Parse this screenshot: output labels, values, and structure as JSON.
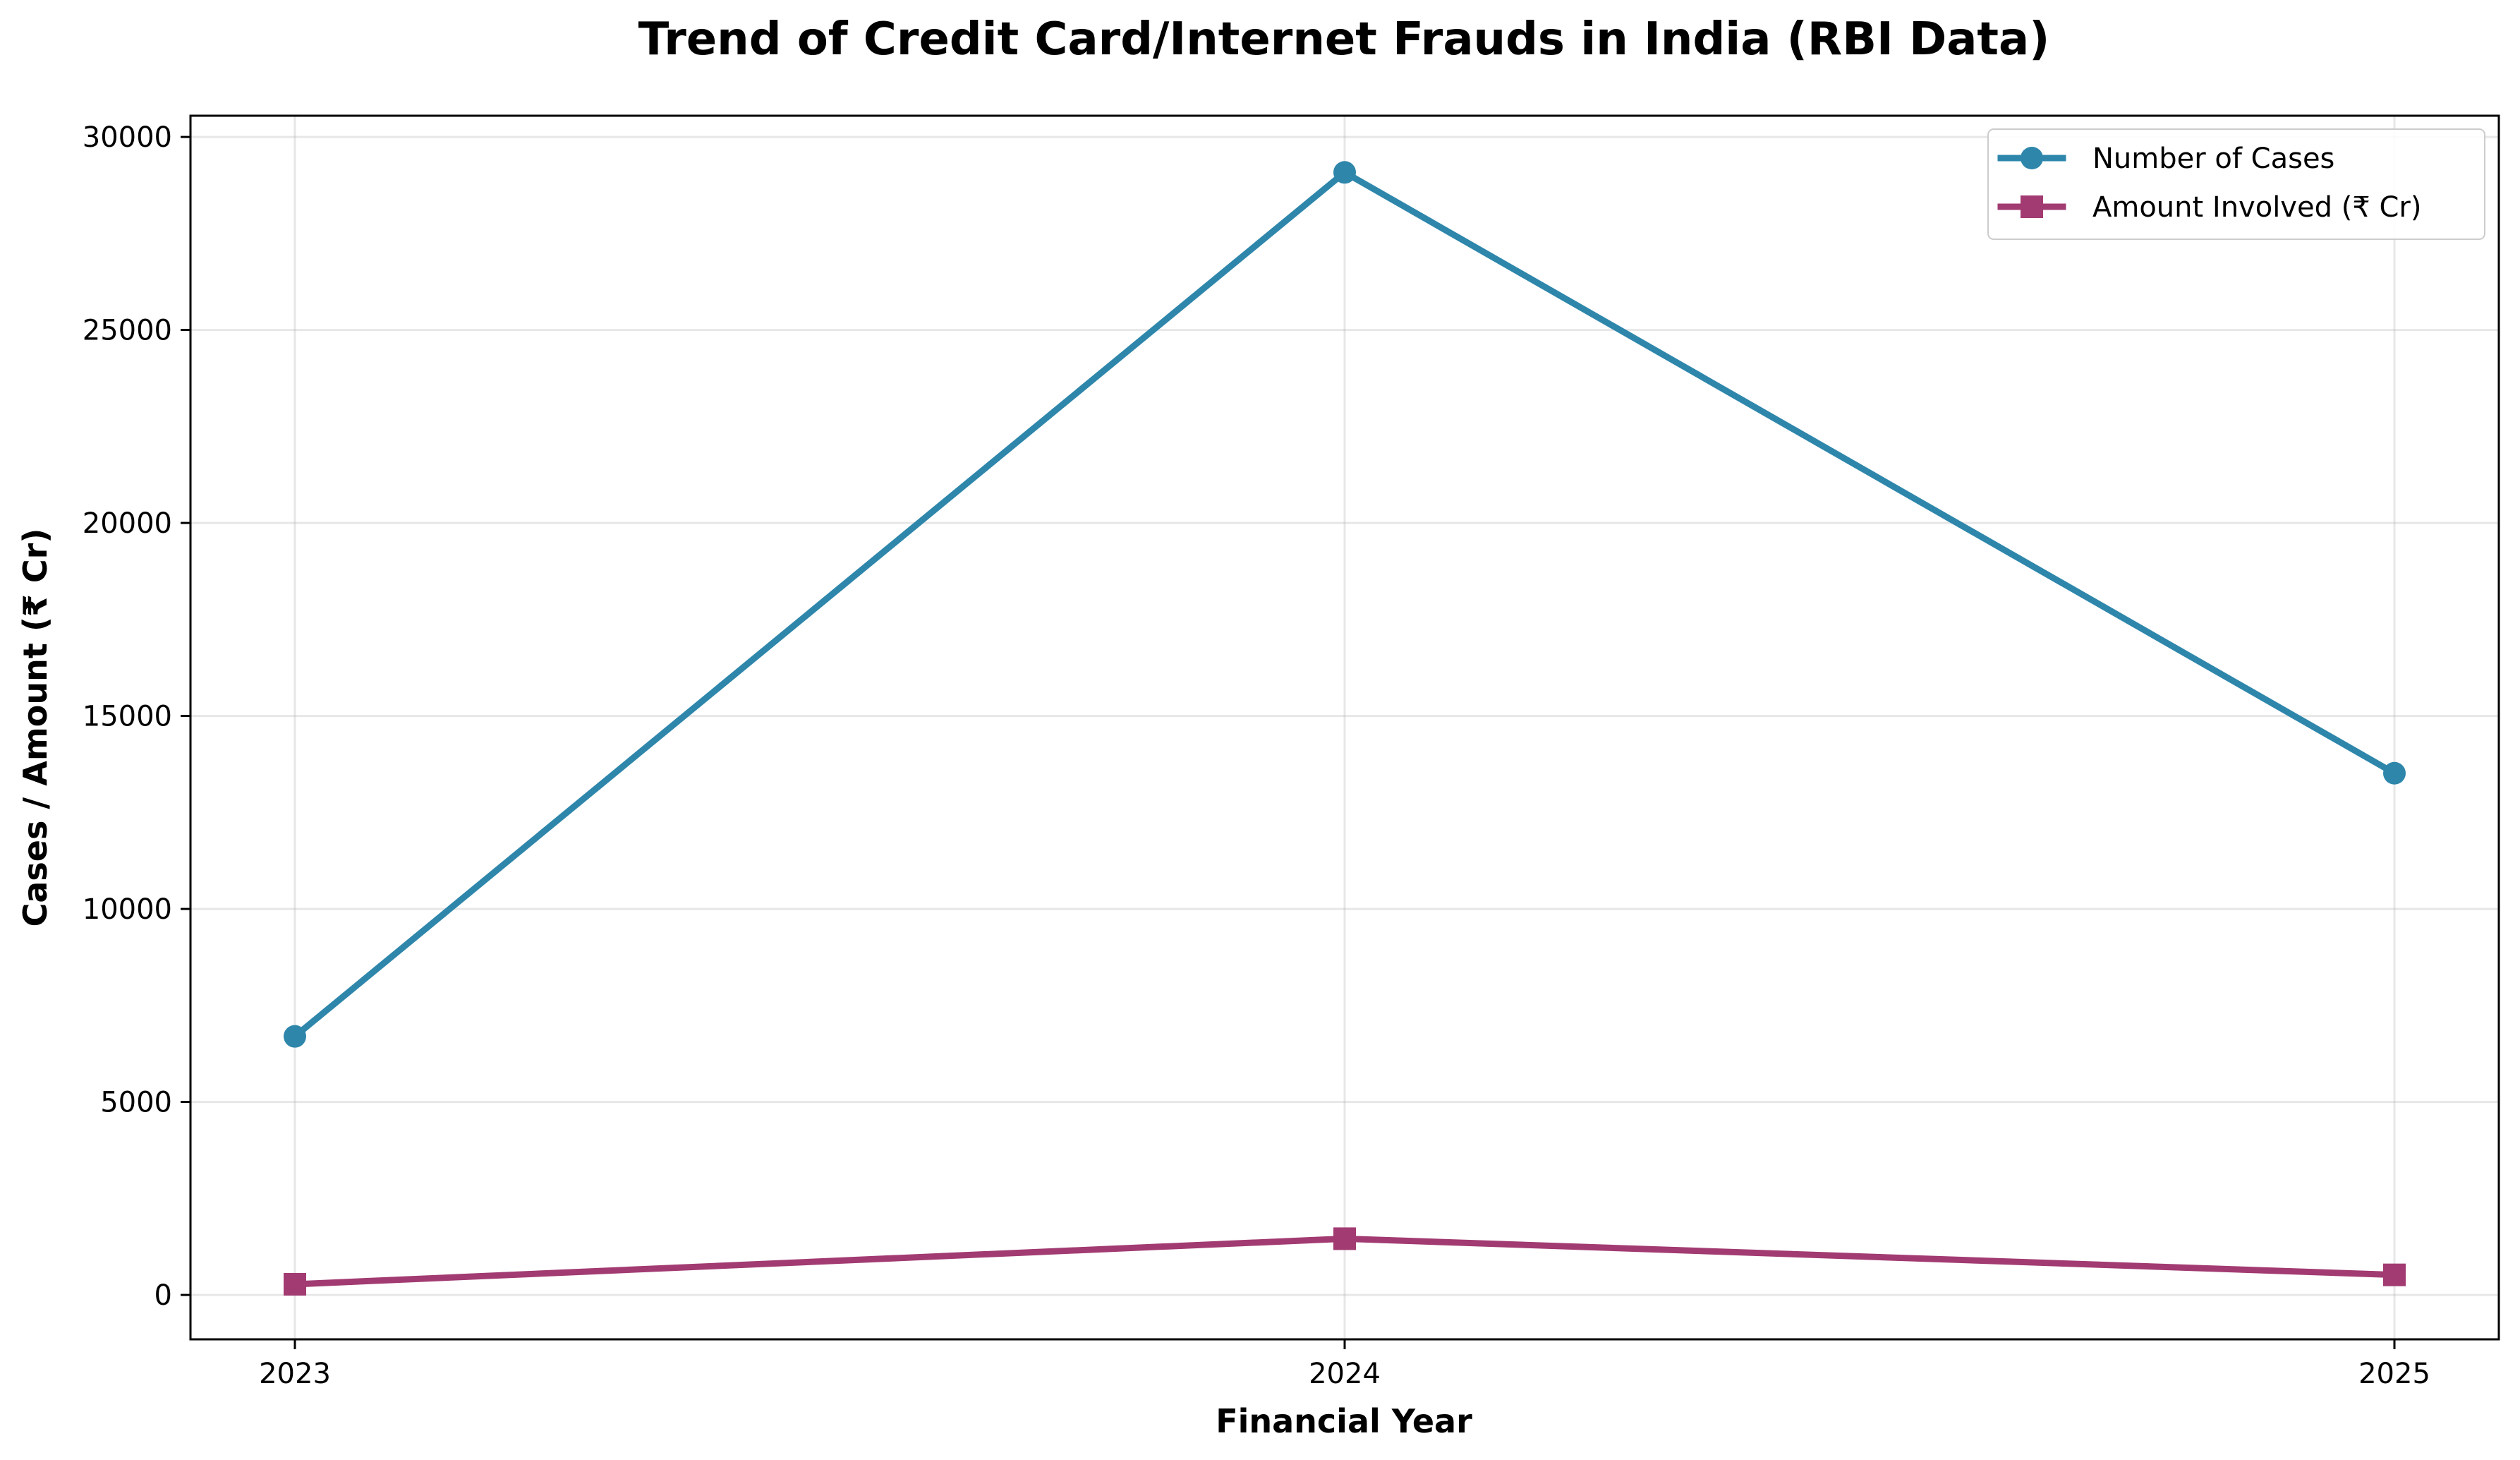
{
  "chart_data": {
    "type": "line",
    "title": "Trend of Credit Card/Internet Frauds in India (RBI Data)",
    "xlabel": "Financial Year",
    "ylabel": "Cases / Amount (₹ Cr)",
    "categories": [
      "2023",
      "2024",
      "2025"
    ],
    "ylim": [
      -1150,
      30550
    ],
    "yticks": [
      0,
      5000,
      10000,
      15000,
      20000,
      25000,
      30000
    ],
    "grid": true,
    "legend_position": "top-right",
    "series": [
      {
        "name": "Number of Cases",
        "values": [
          6699,
          29082,
          13516
        ],
        "color": "#2e86ab",
        "marker": "circle"
      },
      {
        "name": "Amount Involved (₹ Cr)",
        "values": [
          277,
          1457,
          520
        ],
        "color": "#a23b72",
        "marker": "square"
      }
    ]
  }
}
